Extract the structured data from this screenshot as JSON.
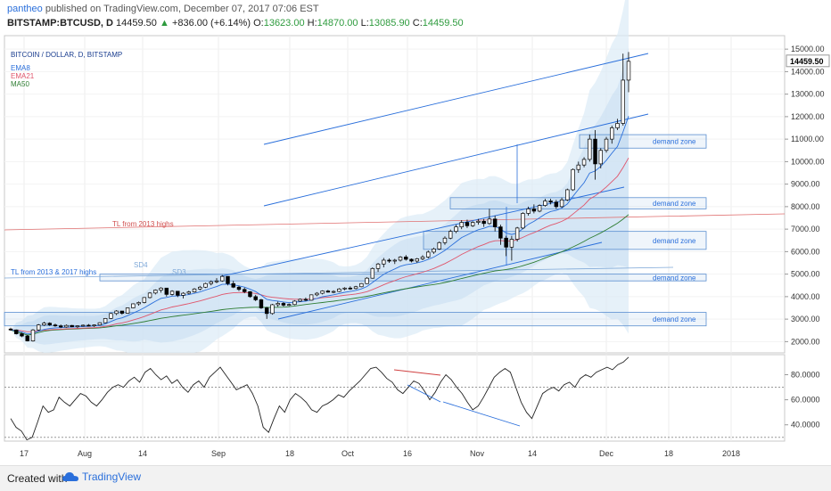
{
  "header": {
    "user": "pantheo",
    "published": "published on TradingView.com, December 07, 2017 07:06 EST",
    "symbol": "BITSTAMP:BTCUSD, D",
    "last": "14459.50",
    "change_arrow": "▲",
    "change": "+836.00 (+6.14%)",
    "o_label": "O:",
    "o_value": "13623.00",
    "h_label": "H:",
    "h_value": "14870.00",
    "l_label": "L:",
    "l_value": "13085.90",
    "c_label": "C:",
    "c_value": "14459.50"
  },
  "chart_data": [
    {
      "type": "candlestick",
      "title": "BITCOIN / DOLLAR, D, BITSTAMP",
      "legend": [
        {
          "name": "EMA8",
          "color": "#2a6fdb"
        },
        {
          "name": "EMA21",
          "color": "#e0556b"
        },
        {
          "name": "MA50",
          "color": "#2e7d32"
        }
      ],
      "y_ticks": [
        "15000.00",
        "14000.00",
        "13000.00",
        "12000.00",
        "11000.00",
        "10000.00",
        "9000.00",
        "8000.00",
        "7000.00",
        "6000.00",
        "5000.00",
        "4000.00",
        "3000.00",
        "2000.00"
      ],
      "y_range": [
        1500,
        15600
      ],
      "last_price_label": "14459.50",
      "x_labels": [
        "17",
        "Aug",
        "14",
        "Sep",
        "18",
        "Oct",
        "16",
        "Nov",
        "14",
        "Dec",
        "18",
        "2018"
      ],
      "candles": [
        [
          2560,
          2620,
          2480,
          2520
        ],
        [
          2520,
          2540,
          2320,
          2350
        ],
        [
          2350,
          2400,
          2200,
          2250
        ],
        [
          2250,
          2300,
          2010,
          2030
        ],
        [
          2030,
          2560,
          2000,
          2520
        ],
        [
          2520,
          2780,
          2480,
          2740
        ],
        [
          2740,
          2880,
          2700,
          2820
        ],
        [
          2820,
          2860,
          2700,
          2740
        ],
        [
          2740,
          2800,
          2660,
          2700
        ],
        [
          2700,
          2760,
          2600,
          2650
        ],
        [
          2650,
          2760,
          2620,
          2720
        ],
        [
          2720,
          2740,
          2640,
          2660
        ],
        [
          2660,
          2720,
          2600,
          2700
        ],
        [
          2700,
          2760,
          2670,
          2730
        ],
        [
          2730,
          2780,
          2680,
          2710
        ],
        [
          2710,
          2760,
          2650,
          2740
        ],
        [
          2740,
          2860,
          2720,
          2840
        ],
        [
          2840,
          3050,
          2820,
          3030
        ],
        [
          3030,
          3280,
          3000,
          3250
        ],
        [
          3250,
          3400,
          3180,
          3360
        ],
        [
          3360,
          3300,
          3200,
          3260
        ],
        [
          3260,
          3520,
          3240,
          3500
        ],
        [
          3500,
          3700,
          3480,
          3680
        ],
        [
          3680,
          3780,
          3600,
          3740
        ],
        [
          3740,
          3980,
          3700,
          3960
        ],
        [
          3960,
          4200,
          3920,
          4160
        ],
        [
          4160,
          4320,
          4100,
          4290
        ],
        [
          4290,
          4420,
          4180,
          4380
        ],
        [
          4380,
          4320,
          4000,
          4100
        ],
        [
          4100,
          4280,
          4050,
          4240
        ],
        [
          4240,
          4200,
          3980,
          4060
        ],
        [
          4060,
          4200,
          3920,
          4150
        ],
        [
          4150,
          4260,
          4100,
          4210
        ],
        [
          4210,
          4380,
          4180,
          4340
        ],
        [
          4340,
          4480,
          4280,
          4420
        ],
        [
          4420,
          4620,
          4380,
          4580
        ],
        [
          4580,
          4720,
          4500,
          4660
        ],
        [
          4660,
          4820,
          4600,
          4700
        ],
        [
          4700,
          4960,
          4660,
          4900
        ],
        [
          4900,
          4800,
          4500,
          4580
        ],
        [
          4580,
          4700,
          4380,
          4420
        ],
        [
          4420,
          4480,
          4250,
          4320
        ],
        [
          4320,
          4400,
          4150,
          4220
        ],
        [
          4220,
          4250,
          3950,
          4000
        ],
        [
          4000,
          4080,
          3800,
          3860
        ],
        [
          3860,
          3900,
          3450,
          3500
        ],
        [
          3500,
          3550,
          3010,
          3250
        ],
        [
          3250,
          3680,
          3200,
          3640
        ],
        [
          3640,
          3780,
          3550,
          3700
        ],
        [
          3700,
          3760,
          3560,
          3620
        ],
        [
          3620,
          3700,
          3580,
          3650
        ],
        [
          3650,
          3840,
          3620,
          3800
        ],
        [
          3800,
          3920,
          3760,
          3880
        ],
        [
          3880,
          3960,
          3800,
          3840
        ],
        [
          3840,
          4100,
          3820,
          4080
        ],
        [
          4080,
          4200,
          4020,
          4150
        ],
        [
          4150,
          4280,
          4100,
          4250
        ],
        [
          4250,
          4300,
          4180,
          4200
        ],
        [
          4200,
          4280,
          4150,
          4230
        ],
        [
          4230,
          4380,
          4200,
          4340
        ],
        [
          4340,
          4420,
          4280,
          4380
        ],
        [
          4380,
          4460,
          4300,
          4360
        ],
        [
          4360,
          4480,
          4320,
          4440
        ],
        [
          4440,
          4600,
          4420,
          4580
        ],
        [
          4580,
          4860,
          4560,
          4820
        ],
        [
          4820,
          5300,
          4800,
          5250
        ],
        [
          5250,
          5500,
          5100,
          5450
        ],
        [
          5450,
          5720,
          5300,
          5620
        ],
        [
          5620,
          5700,
          5500,
          5580
        ],
        [
          5580,
          5680,
          5450,
          5620
        ],
        [
          5620,
          5800,
          5560,
          5760
        ],
        [
          5760,
          5850,
          5600,
          5660
        ],
        [
          5660,
          5700,
          5520,
          5580
        ],
        [
          5580,
          5720,
          5500,
          5680
        ],
        [
          5680,
          5840,
          5620,
          5760
        ],
        [
          5760,
          6050,
          5700,
          5980
        ],
        [
          5980,
          6180,
          5900,
          6120
        ],
        [
          6120,
          6450,
          6080,
          6400
        ],
        [
          6400,
          6680,
          6300,
          6600
        ],
        [
          6600,
          6980,
          6550,
          6900
        ],
        [
          6900,
          7200,
          6820,
          7100
        ],
        [
          7100,
          7400,
          7000,
          7300
        ],
        [
          7300,
          7420,
          7050,
          7150
        ],
        [
          7150,
          7350,
          7100,
          7300
        ],
        [
          7300,
          7450,
          7200,
          7350
        ],
        [
          7350,
          7450,
          7100,
          7250
        ],
        [
          7250,
          7900,
          7200,
          7450
        ],
        [
          7450,
          7600,
          6900,
          7100
        ],
        [
          7100,
          7200,
          6300,
          6600
        ],
        [
          6600,
          6700,
          5800,
          6200
        ],
        [
          6200,
          6700,
          5600,
          6550
        ],
        [
          6550,
          7100,
          6450,
          7050
        ],
        [
          7050,
          7750,
          7000,
          7700
        ],
        [
          7700,
          8000,
          7600,
          7900
        ],
        [
          7900,
          8100,
          7700,
          7800
        ],
        [
          7800,
          8100,
          7750,
          8050
        ],
        [
          8050,
          8350,
          8000,
          8250
        ],
        [
          8250,
          8350,
          8100,
          8200
        ],
        [
          8200,
          8300,
          7900,
          8000
        ],
        [
          8000,
          8400,
          7950,
          8300
        ],
        [
          8300,
          8800,
          8250,
          8750
        ],
        [
          8750,
          9700,
          8700,
          9650
        ],
        [
          9650,
          10000,
          9500,
          9850
        ],
        [
          9850,
          10200,
          9750,
          10100
        ],
        [
          10100,
          11200,
          10000,
          11000
        ],
        [
          11000,
          11400,
          9200,
          9900
        ],
        [
          9900,
          10600,
          9700,
          10500
        ],
        [
          10500,
          11100,
          10400,
          11000
        ],
        [
          11000,
          11600,
          10800,
          11500
        ],
        [
          11500,
          11900,
          11400,
          11700
        ],
        [
          11700,
          14800,
          11600,
          13623
        ],
        [
          13623,
          14870,
          13085.9,
          14459.5
        ]
      ],
      "annotations": [
        "TL from 2013 highs",
        "TL from 2013 & 2017 highs",
        "SD4",
        "SD3",
        "demand zone",
        "demand zone",
        "demand zone",
        "demand zone",
        "demand zone"
      ]
    },
    {
      "type": "line",
      "title": "",
      "y_ticks": [
        "80.0000",
        "60.0000",
        "40.0000"
      ],
      "y_range": [
        27,
        96
      ],
      "values": [
        45,
        38,
        35,
        28,
        30,
        42,
        55,
        50,
        52,
        62,
        58,
        55,
        60,
        65,
        63,
        58,
        55,
        60,
        66,
        70,
        72,
        70,
        75,
        78,
        74,
        82,
        85,
        80,
        76,
        79,
        73,
        76,
        70,
        66,
        72,
        75,
        70,
        78,
        82,
        86,
        80,
        74,
        68,
        70,
        72,
        65,
        55,
        38,
        34,
        45,
        55,
        50,
        60,
        65,
        62,
        58,
        52,
        50,
        55,
        57,
        60,
        64,
        62,
        67,
        71,
        75,
        80,
        85,
        86,
        82,
        77,
        74,
        68,
        65,
        70,
        75,
        73,
        67,
        60,
        66,
        74,
        80,
        76,
        70,
        65,
        58,
        52,
        55,
        62,
        70,
        78,
        82,
        85,
        82,
        70,
        58,
        50,
        45,
        55,
        65,
        68,
        70,
        67,
        72,
        74,
        70,
        77,
        80,
        78,
        82,
        84,
        86,
        84,
        88,
        90,
        94
      ]
    }
  ]
}
